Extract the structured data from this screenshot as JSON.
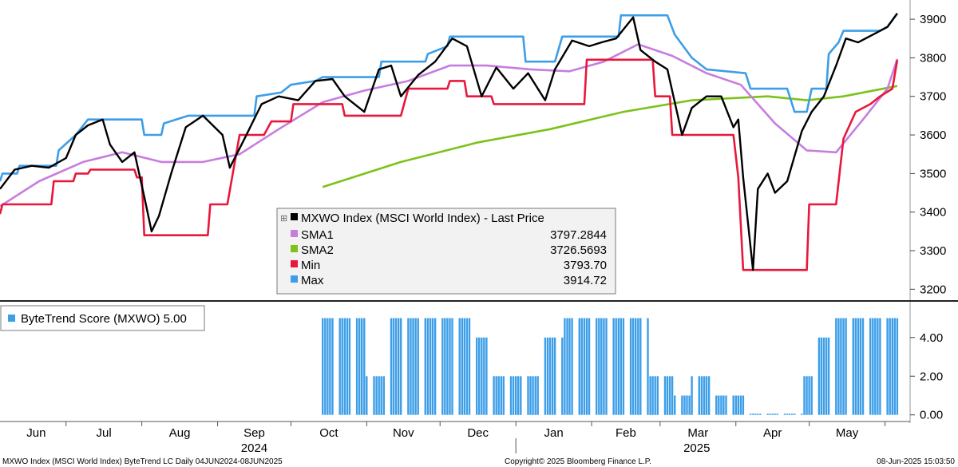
{
  "chart_data": [
    {
      "type": "line",
      "yticks": [
        3200,
        3300,
        3400,
        3500,
        3600,
        3700,
        3800,
        3900
      ],
      "ylim": [
        3180,
        3925
      ],
      "x_months": [
        "Jun",
        "Jul",
        "Aug",
        "Sep",
        "Oct",
        "Nov",
        "Dec",
        "Jan",
        "Feb",
        "Mar",
        "Apr",
        "May"
      ],
      "x_years": [
        "2024",
        "2025"
      ],
      "x_range": [
        "2024-06-04",
        "2025-06-08"
      ],
      "legend": {
        "title": "MXWO Index (MSCI World Index) - Last Price",
        "entries": [
          {
            "name": "SMA1",
            "value": "3797.2844",
            "color": "#c77ddf"
          },
          {
            "name": "SMA2",
            "value": "3726.5693",
            "color": "#7cc21a"
          },
          {
            "name": "Min",
            "value": "3793.70",
            "color": "#e8173c"
          },
          {
            "name": "Max",
            "value": "3914.72",
            "color": "#3d9ee8"
          }
        ]
      },
      "series": [
        {
          "name": "MXWO Index (MSCI World Index) - Last Price",
          "color": "#000000",
          "points": [
            [
              "2024-06-04",
              3460
            ],
            [
              "2024-06-10",
              3510
            ],
            [
              "2024-06-17",
              3520
            ],
            [
              "2024-06-24",
              3515
            ],
            [
              "2024-07-01",
              3540
            ],
            [
              "2024-07-05",
              3600
            ],
            [
              "2024-07-10",
              3625
            ],
            [
              "2024-07-16",
              3640
            ],
            [
              "2024-07-19",
              3575
            ],
            [
              "2024-07-24",
              3530
            ],
            [
              "2024-07-29",
              3555
            ],
            [
              "2024-08-02",
              3440
            ],
            [
              "2024-08-05",
              3350
            ],
            [
              "2024-08-08",
              3390
            ],
            [
              "2024-08-13",
              3500
            ],
            [
              "2024-08-19",
              3620
            ],
            [
              "2024-08-26",
              3650
            ],
            [
              "2024-09-03",
              3600
            ],
            [
              "2024-09-06",
              3515
            ],
            [
              "2024-09-12",
              3590
            ],
            [
              "2024-09-19",
              3680
            ],
            [
              "2024-09-26",
              3700
            ],
            [
              "2024-10-04",
              3690
            ],
            [
              "2024-10-11",
              3740
            ],
            [
              "2024-10-18",
              3745
            ],
            [
              "2024-10-23",
              3700
            ],
            [
              "2024-10-31",
              3660
            ],
            [
              "2024-11-06",
              3770
            ],
            [
              "2024-11-11",
              3780
            ],
            [
              "2024-11-15",
              3700
            ],
            [
              "2024-11-22",
              3755
            ],
            [
              "2024-11-29",
              3790
            ],
            [
              "2024-12-06",
              3850
            ],
            [
              "2024-12-12",
              3830
            ],
            [
              "2024-12-18",
              3700
            ],
            [
              "2024-12-24",
              3775
            ],
            [
              "2024-12-31",
              3720
            ],
            [
              "2025-01-06",
              3760
            ],
            [
              "2025-01-13",
              3690
            ],
            [
              "2025-01-17",
              3770
            ],
            [
              "2025-01-24",
              3845
            ],
            [
              "2025-01-31",
              3830
            ],
            [
              "2025-02-05",
              3840
            ],
            [
              "2025-02-11",
              3850
            ],
            [
              "2025-02-18",
              3905
            ],
            [
              "2025-02-21",
              3820
            ],
            [
              "2025-02-27",
              3790
            ],
            [
              "2025-03-04",
              3770
            ],
            [
              "2025-03-10",
              3600
            ],
            [
              "2025-03-14",
              3670
            ],
            [
              "2025-03-20",
              3700
            ],
            [
              "2025-03-26",
              3700
            ],
            [
              "2025-03-31",
              3620
            ],
            [
              "2025-04-02",
              3640
            ],
            [
              "2025-04-04",
              3490
            ],
            [
              "2025-04-08",
              3250
            ],
            [
              "2025-04-10",
              3460
            ],
            [
              "2025-04-14",
              3500
            ],
            [
              "2025-04-17",
              3450
            ],
            [
              "2025-04-22",
              3480
            ],
            [
              "2025-04-28",
              3610
            ],
            [
              "2025-05-02",
              3660
            ],
            [
              "2025-05-07",
              3700
            ],
            [
              "2025-05-12",
              3780
            ],
            [
              "2025-05-16",
              3850
            ],
            [
              "2025-05-21",
              3840
            ],
            [
              "2025-05-27",
              3860
            ],
            [
              "2025-06-02",
              3880
            ],
            [
              "2025-06-06",
              3915
            ]
          ]
        },
        {
          "name": "SMA1",
          "color": "#c77ddf",
          "points": [
            [
              "2024-06-04",
              3415
            ],
            [
              "2024-06-20",
              3480
            ],
            [
              "2024-07-08",
              3530
            ],
            [
              "2024-07-24",
              3555
            ],
            [
              "2024-08-09",
              3530
            ],
            [
              "2024-08-26",
              3530
            ],
            [
              "2024-09-10",
              3550
            ],
            [
              "2024-09-26",
              3615
            ],
            [
              "2024-10-14",
              3685
            ],
            [
              "2024-10-31",
              3715
            ],
            [
              "2024-11-18",
              3740
            ],
            [
              "2024-12-05",
              3780
            ],
            [
              "2024-12-20",
              3780
            ],
            [
              "2025-01-07",
              3770
            ],
            [
              "2025-01-23",
              3765
            ],
            [
              "2025-02-06",
              3790
            ],
            [
              "2025-02-20",
              3835
            ],
            [
              "2025-03-06",
              3805
            ],
            [
              "2025-03-20",
              3760
            ],
            [
              "2025-04-03",
              3730
            ],
            [
              "2025-04-17",
              3630
            ],
            [
              "2025-04-30",
              3560
            ],
            [
              "2025-05-12",
              3555
            ],
            [
              "2025-05-23",
              3640
            ],
            [
              "2025-06-02",
              3720
            ],
            [
              "2025-06-06",
              3797
            ]
          ]
        },
        {
          "name": "SMA2",
          "color": "#7cc21a",
          "points": [
            [
              "2024-10-14",
              3465
            ],
            [
              "2024-11-15",
              3530
            ],
            [
              "2024-12-16",
              3580
            ],
            [
              "2025-01-15",
              3615
            ],
            [
              "2025-02-14",
              3660
            ],
            [
              "2025-03-14",
              3690
            ],
            [
              "2025-04-14",
              3700
            ],
            [
              "2025-04-30",
              3690
            ],
            [
              "2025-05-15",
              3700
            ],
            [
              "2025-06-06",
              3727
            ]
          ]
        },
        {
          "name": "Min",
          "color": "#e8173c",
          "points": [
            [
              "2024-06-04",
              3395
            ],
            [
              "2024-06-05",
              3420
            ],
            [
              "2024-06-25",
              3420
            ],
            [
              "2024-06-26",
              3480
            ],
            [
              "2024-07-04",
              3480
            ],
            [
              "2024-07-05",
              3500
            ],
            [
              "2024-07-10",
              3500
            ],
            [
              "2024-07-11",
              3510
            ],
            [
              "2024-07-29",
              3510
            ],
            [
              "2024-07-30",
              3490
            ],
            [
              "2024-08-01",
              3490
            ],
            [
              "2024-08-02",
              3340
            ],
            [
              "2024-08-28",
              3340
            ],
            [
              "2024-08-29",
              3420
            ],
            [
              "2024-09-05",
              3420
            ],
            [
              "2024-09-10",
              3600
            ],
            [
              "2024-09-20",
              3600
            ],
            [
              "2024-09-23",
              3635
            ],
            [
              "2024-10-01",
              3635
            ],
            [
              "2024-10-02",
              3680
            ],
            [
              "2024-10-22",
              3680
            ],
            [
              "2024-10-23",
              3650
            ],
            [
              "2024-11-15",
              3650
            ],
            [
              "2024-11-18",
              3720
            ],
            [
              "2024-12-04",
              3720
            ],
            [
              "2024-12-05",
              3740
            ],
            [
              "2024-12-11",
              3740
            ],
            [
              "2024-12-12",
              3700
            ],
            [
              "2024-12-22",
              3700
            ],
            [
              "2024-12-23",
              3680
            ],
            [
              "2025-01-29",
              3680
            ],
            [
              "2025-01-30",
              3795
            ],
            [
              "2025-02-26",
              3795
            ],
            [
              "2025-02-27",
              3700
            ],
            [
              "2025-03-05",
              3700
            ],
            [
              "2025-03-06",
              3600
            ],
            [
              "2025-03-31",
              3600
            ],
            [
              "2025-04-02",
              3490
            ],
            [
              "2025-04-04",
              3250
            ],
            [
              "2025-04-30",
              3250
            ],
            [
              "2025-05-01",
              3420
            ],
            [
              "2025-05-12",
              3420
            ],
            [
              "2025-05-15",
              3590
            ],
            [
              "2025-05-20",
              3660
            ],
            [
              "2025-05-26",
              3680
            ],
            [
              "2025-05-30",
              3700
            ],
            [
              "2025-06-04",
              3720
            ],
            [
              "2025-06-06",
              3794
            ]
          ]
        },
        {
          "name": "Max",
          "color": "#3d9ee8",
          "points": [
            [
              "2024-06-04",
              3480
            ],
            [
              "2024-06-05",
              3500
            ],
            [
              "2024-06-11",
              3500
            ],
            [
              "2024-06-12",
              3520
            ],
            [
              "2024-06-27",
              3520
            ],
            [
              "2024-06-28",
              3560
            ],
            [
              "2024-07-05",
              3600
            ],
            [
              "2024-07-10",
              3640
            ],
            [
              "2024-08-01",
              3640
            ],
            [
              "2024-08-02",
              3600
            ],
            [
              "2024-08-09",
              3600
            ],
            [
              "2024-08-10",
              3630
            ],
            [
              "2024-08-20",
              3650
            ],
            [
              "2024-09-16",
              3650
            ],
            [
              "2024-09-17",
              3700
            ],
            [
              "2024-09-27",
              3710
            ],
            [
              "2024-10-01",
              3730
            ],
            [
              "2024-10-11",
              3740
            ],
            [
              "2024-10-14",
              3750
            ],
            [
              "2024-11-06",
              3750
            ],
            [
              "2024-11-07",
              3790
            ],
            [
              "2024-11-25",
              3790
            ],
            [
              "2024-11-26",
              3810
            ],
            [
              "2024-12-04",
              3830
            ],
            [
              "2024-12-05",
              3855
            ],
            [
              "2025-01-04",
              3855
            ],
            [
              "2025-01-05",
              3790
            ],
            [
              "2025-01-17",
              3790
            ],
            [
              "2025-01-20",
              3855
            ],
            [
              "2025-02-12",
              3855
            ],
            [
              "2025-02-13",
              3910
            ],
            [
              "2025-03-04",
              3910
            ],
            [
              "2025-03-07",
              3860
            ],
            [
              "2025-03-14",
              3800
            ],
            [
              "2025-03-20",
              3770
            ],
            [
              "2025-04-05",
              3760
            ],
            [
              "2025-04-07",
              3720
            ],
            [
              "2025-04-22",
              3720
            ],
            [
              "2025-04-25",
              3660
            ],
            [
              "2025-04-30",
              3660
            ],
            [
              "2025-05-02",
              3720
            ],
            [
              "2025-05-08",
              3720
            ],
            [
              "2025-05-09",
              3810
            ],
            [
              "2025-05-13",
              3840
            ],
            [
              "2025-05-15",
              3870
            ],
            [
              "2025-05-30",
              3870
            ],
            [
              "2025-06-02",
              3880
            ],
            [
              "2025-06-06",
              3915
            ]
          ]
        }
      ]
    },
    {
      "type": "bar",
      "yticks": [
        "0.00",
        "2.00",
        "4.00"
      ],
      "ylim": [
        -0.3,
        5.6
      ],
      "legend": {
        "name": "ByteTrend Score (MXWO) 5.00",
        "color": "#3d9ee8"
      },
      "segments": [
        {
          "start": "2024-10-14",
          "end": "2024-10-31",
          "value": 5
        },
        {
          "start": "2024-11-01",
          "end": "2024-11-10",
          "value": 2
        },
        {
          "start": "2024-11-11",
          "end": "2024-12-13",
          "value": 5
        },
        {
          "start": "2024-12-14",
          "end": "2024-12-21",
          "value": 4
        },
        {
          "start": "2024-12-22",
          "end": "2024-12-31",
          "value": 2
        },
        {
          "start": "2025-01-01",
          "end": "2025-01-12",
          "value": 2
        },
        {
          "start": "2025-01-13",
          "end": "2025-01-20",
          "value": 4
        },
        {
          "start": "2025-01-21",
          "end": "2025-02-24",
          "value": 5
        },
        {
          "start": "2025-02-25",
          "end": "2025-03-06",
          "value": 2
        },
        {
          "start": "2025-03-07",
          "end": "2025-03-13",
          "value": 1
        },
        {
          "start": "2025-03-14",
          "end": "2025-03-21",
          "value": 2
        },
        {
          "start": "2025-03-22",
          "end": "2025-04-05",
          "value": 1
        },
        {
          "start": "2025-04-06",
          "end": "2025-04-28",
          "value": 0
        },
        {
          "start": "2025-04-29",
          "end": "2025-05-04",
          "value": 2
        },
        {
          "start": "2025-05-05",
          "end": "2025-05-09",
          "value": 4
        },
        {
          "start": "2025-05-10",
          "end": "2025-06-06",
          "value": 5
        }
      ]
    }
  ],
  "footer": {
    "left": "MXWO Index (MSCI World Index) ByteTrend LC  Daily 04JUN2024-08JUN2025",
    "center": "Copyright© 2025 Bloomberg Finance L.P.",
    "right": "08-Jun-2025 15:03:50"
  }
}
